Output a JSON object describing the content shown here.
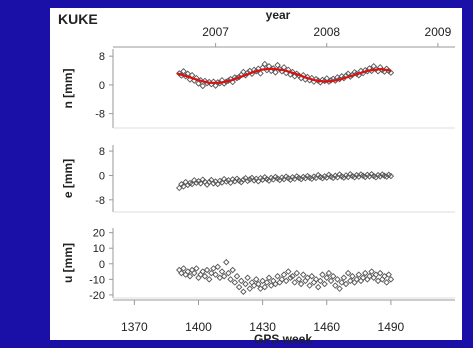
{
  "chart_data": {
    "type": "scatter",
    "station": "KUKE",
    "top_axis": {
      "label": "year",
      "ticks": [
        "2007",
        "2008",
        "2009"
      ],
      "tick_weeks": [
        1408,
        1460,
        1512
      ]
    },
    "x": {
      "label": "GPS week",
      "lim": [
        1360,
        1520
      ],
      "ticks": [
        1370,
        1400,
        1430,
        1460,
        1490
      ]
    },
    "panels": [
      {
        "id": "n",
        "ylabel": "n [mm]",
        "ylim": [
          -12,
          10
        ],
        "yticks": [
          8,
          0,
          -8
        ],
        "marker": "diamond",
        "marker_color": "#555555",
        "points": {
          "x": [
            1391,
            1392,
            1393,
            1394,
            1395,
            1396,
            1397,
            1398,
            1399,
            1400,
            1401,
            1402,
            1403,
            1404,
            1405,
            1406,
            1407,
            1408,
            1409,
            1410,
            1411,
            1412,
            1413,
            1414,
            1415,
            1416,
            1417,
            1418,
            1419,
            1420,
            1421,
            1422,
            1423,
            1424,
            1425,
            1426,
            1427,
            1428,
            1429,
            1430,
            1431,
            1432,
            1433,
            1434,
            1435,
            1436,
            1437,
            1438,
            1439,
            1440,
            1441,
            1442,
            1443,
            1444,
            1445,
            1446,
            1447,
            1448,
            1449,
            1450,
            1451,
            1452,
            1453,
            1454,
            1455,
            1456,
            1457,
            1458,
            1459,
            1460,
            1461,
            1462,
            1463,
            1464,
            1465,
            1466,
            1467,
            1468,
            1469,
            1470,
            1471,
            1472,
            1473,
            1474,
            1475,
            1476,
            1477,
            1478,
            1479,
            1480,
            1481,
            1482,
            1483,
            1484,
            1485,
            1486,
            1487,
            1488,
            1489,
            1490
          ],
          "y": [
            3.2,
            2.6,
            3.8,
            2.4,
            3.1,
            1.5,
            2.7,
            1.2,
            1.9,
            0.4,
            1.3,
            -0.3,
            1.1,
            0.5,
            0.8,
            0.2,
            0.9,
            -0.2,
            0.7,
            0.5,
            1.3,
            0.4,
            0.9,
            1.2,
            1.6,
            0.8,
            2.1,
            1.9,
            2.2,
            2.8,
            3.6,
            2.7,
            3.4,
            3.9,
            3.1,
            4.2,
            3.8,
            4.5,
            3.2,
            4.8,
            5.8,
            4.1,
            5.2,
            3.9,
            4.6,
            3.5,
            5.5,
            4.4,
            3.8,
            4.9,
            3.3,
            4.2,
            2.9,
            3.6,
            2.4,
            3.1,
            2.6,
            1.9,
            2.7,
            1.5,
            2.2,
            1.3,
            1.9,
            0.9,
            1.6,
            1.2,
            0.7,
            1.4,
            1.1,
            1.8,
            0.9,
            1.3,
            1.7,
            1.2,
            2.1,
            1.6,
            2.4,
            1.9,
            2.6,
            3.1,
            2.3,
            2.8,
            3.5,
            3.1,
            2.7,
            3.9,
            3.3,
            4.1,
            3.8,
            4.6,
            3.9,
            5.2,
            4.4,
            3.8,
            4.9,
            4.1,
            3.7,
            4.5,
            3.9,
            3.4
          ]
        },
        "fit": {
          "color": "#dd1111",
          "x": [
            1390,
            1395,
            1400,
            1405,
            1410,
            1415,
            1420,
            1425,
            1430,
            1435,
            1440,
            1445,
            1450,
            1455,
            1460,
            1465,
            1470,
            1475,
            1480,
            1485,
            1490
          ],
          "y": [
            3.2,
            2.3,
            1.3,
            0.6,
            0.6,
            1.2,
            2.3,
            3.4,
            4.3,
            4.5,
            4.1,
            3.2,
            2.1,
            1.2,
            0.9,
            1.3,
            2.2,
            3.2,
            4.0,
            4.4,
            4.0
          ]
        }
      },
      {
        "id": "e",
        "ylabel": "e [mm]",
        "ylim": [
          -12,
          10
        ],
        "yticks": [
          8,
          0,
          -8
        ],
        "marker": "diamond",
        "marker_color": "#555555",
        "points": {
          "x": [
            1391,
            1392,
            1393,
            1394,
            1395,
            1396,
            1397,
            1398,
            1399,
            1400,
            1401,
            1402,
            1403,
            1404,
            1405,
            1406,
            1407,
            1408,
            1409,
            1410,
            1411,
            1412,
            1413,
            1414,
            1415,
            1416,
            1417,
            1418,
            1419,
            1420,
            1421,
            1422,
            1423,
            1424,
            1425,
            1426,
            1427,
            1428,
            1429,
            1430,
            1431,
            1432,
            1433,
            1434,
            1435,
            1436,
            1437,
            1438,
            1439,
            1440,
            1441,
            1442,
            1443,
            1444,
            1445,
            1446,
            1447,
            1448,
            1449,
            1450,
            1451,
            1452,
            1453,
            1454,
            1455,
            1456,
            1457,
            1458,
            1459,
            1460,
            1461,
            1462,
            1463,
            1464,
            1465,
            1466,
            1467,
            1468,
            1469,
            1470,
            1471,
            1472,
            1473,
            1474,
            1475,
            1476,
            1477,
            1478,
            1479,
            1480,
            1481,
            1482,
            1483,
            1484,
            1485,
            1486,
            1487,
            1488,
            1489,
            1490
          ],
          "y": [
            -4.1,
            -2.9,
            -3.6,
            -2.2,
            -3.1,
            -2.5,
            -2.8,
            -1.6,
            -2.4,
            -1.9,
            -2.6,
            -1.4,
            -2.1,
            -3.0,
            -2.2,
            -1.5,
            -2.6,
            -2.0,
            -2.8,
            -1.8,
            -2.3,
            -1.2,
            -2.0,
            -1.6,
            -2.4,
            -1.3,
            -1.9,
            -1.1,
            -1.7,
            -2.2,
            -1.4,
            -0.9,
            -1.8,
            -1.3,
            -0.8,
            -1.6,
            -1.1,
            -1.9,
            -0.9,
            -1.4,
            -0.6,
            -1.2,
            -1.7,
            -0.8,
            -1.3,
            -0.5,
            -1.0,
            -1.5,
            -0.7,
            -1.2,
            -0.4,
            -0.9,
            -1.4,
            -0.6,
            -1.1,
            -0.3,
            -0.8,
            -1.2,
            -0.5,
            -0.9,
            -0.2,
            -0.7,
            -1.1,
            -0.4,
            -0.8,
            0.1,
            -0.5,
            -0.9,
            -0.3,
            -0.7,
            0.2,
            -0.4,
            -0.8,
            -0.1,
            -0.6,
            0.3,
            -0.3,
            -0.7,
            0.0,
            -0.5,
            0.4,
            -0.2,
            -0.6,
            0.1,
            -0.4,
            0.3,
            -0.1,
            -0.5,
            0.2,
            -0.3,
            0.4,
            -0.2,
            -0.6,
            0.1,
            -0.3,
            0.3,
            -0.1,
            -0.4,
            0.2,
            -0.2
          ]
        }
      },
      {
        "id": "u",
        "ylabel": "u [mm]",
        "ylim": [
          -22,
          23
        ],
        "yticks": [
          20,
          10,
          0,
          -10,
          -20
        ],
        "marker": "diamond",
        "marker_color": "#555555",
        "points": {
          "x": [
            1391,
            1392,
            1393,
            1394,
            1395,
            1396,
            1397,
            1398,
            1399,
            1400,
            1401,
            1402,
            1403,
            1404,
            1405,
            1406,
            1407,
            1408,
            1409,
            1410,
            1411,
            1412,
            1413,
            1414,
            1415,
            1416,
            1417,
            1418,
            1419,
            1420,
            1421,
            1422,
            1423,
            1424,
            1425,
            1426,
            1427,
            1428,
            1429,
            1430,
            1431,
            1432,
            1433,
            1434,
            1435,
            1436,
            1437,
            1438,
            1439,
            1440,
            1441,
            1442,
            1443,
            1444,
            1445,
            1446,
            1447,
            1448,
            1449,
            1450,
            1451,
            1452,
            1453,
            1454,
            1455,
            1456,
            1457,
            1458,
            1459,
            1460,
            1461,
            1462,
            1463,
            1464,
            1465,
            1466,
            1467,
            1468,
            1469,
            1470,
            1471,
            1472,
            1473,
            1474,
            1475,
            1476,
            1477,
            1478,
            1479,
            1480,
            1481,
            1482,
            1483,
            1484,
            1485,
            1486,
            1487,
            1488,
            1489,
            1490
          ],
          "y": [
            -4,
            -6,
            -3,
            -7,
            -5,
            -8,
            -4,
            -6,
            -3,
            -9,
            -7,
            -5,
            -8,
            -4,
            -10,
            -6,
            -3,
            -7,
            -2,
            -9,
            -5,
            -8,
            1,
            -6,
            -10,
            -4,
            -12,
            -8,
            -15,
            -11,
            -18,
            -13,
            -9,
            -16,
            -12,
            -14,
            -10,
            -13,
            -16,
            -11,
            -15,
            -12,
            -9,
            -14,
            -11,
            -13,
            -8,
            -12,
            -10,
            -7,
            -11,
            -5,
            -9,
            -8,
            -12,
            -6,
            -10,
            -13,
            -7,
            -11,
            -9,
            -14,
            -8,
            -12,
            -10,
            -15,
            -11,
            -7,
            -13,
            -9,
            -6,
            -11,
            -8,
            -14,
            -10,
            -16,
            -12,
            -9,
            -13,
            -6,
            -11,
            -8,
            -12,
            -10,
            -7,
            -11,
            -9,
            -6,
            -10,
            -8,
            -5,
            -9,
            -7,
            -11,
            -6,
            -10,
            -8,
            -12,
            -7,
            -10
          ]
        }
      }
    ]
  }
}
